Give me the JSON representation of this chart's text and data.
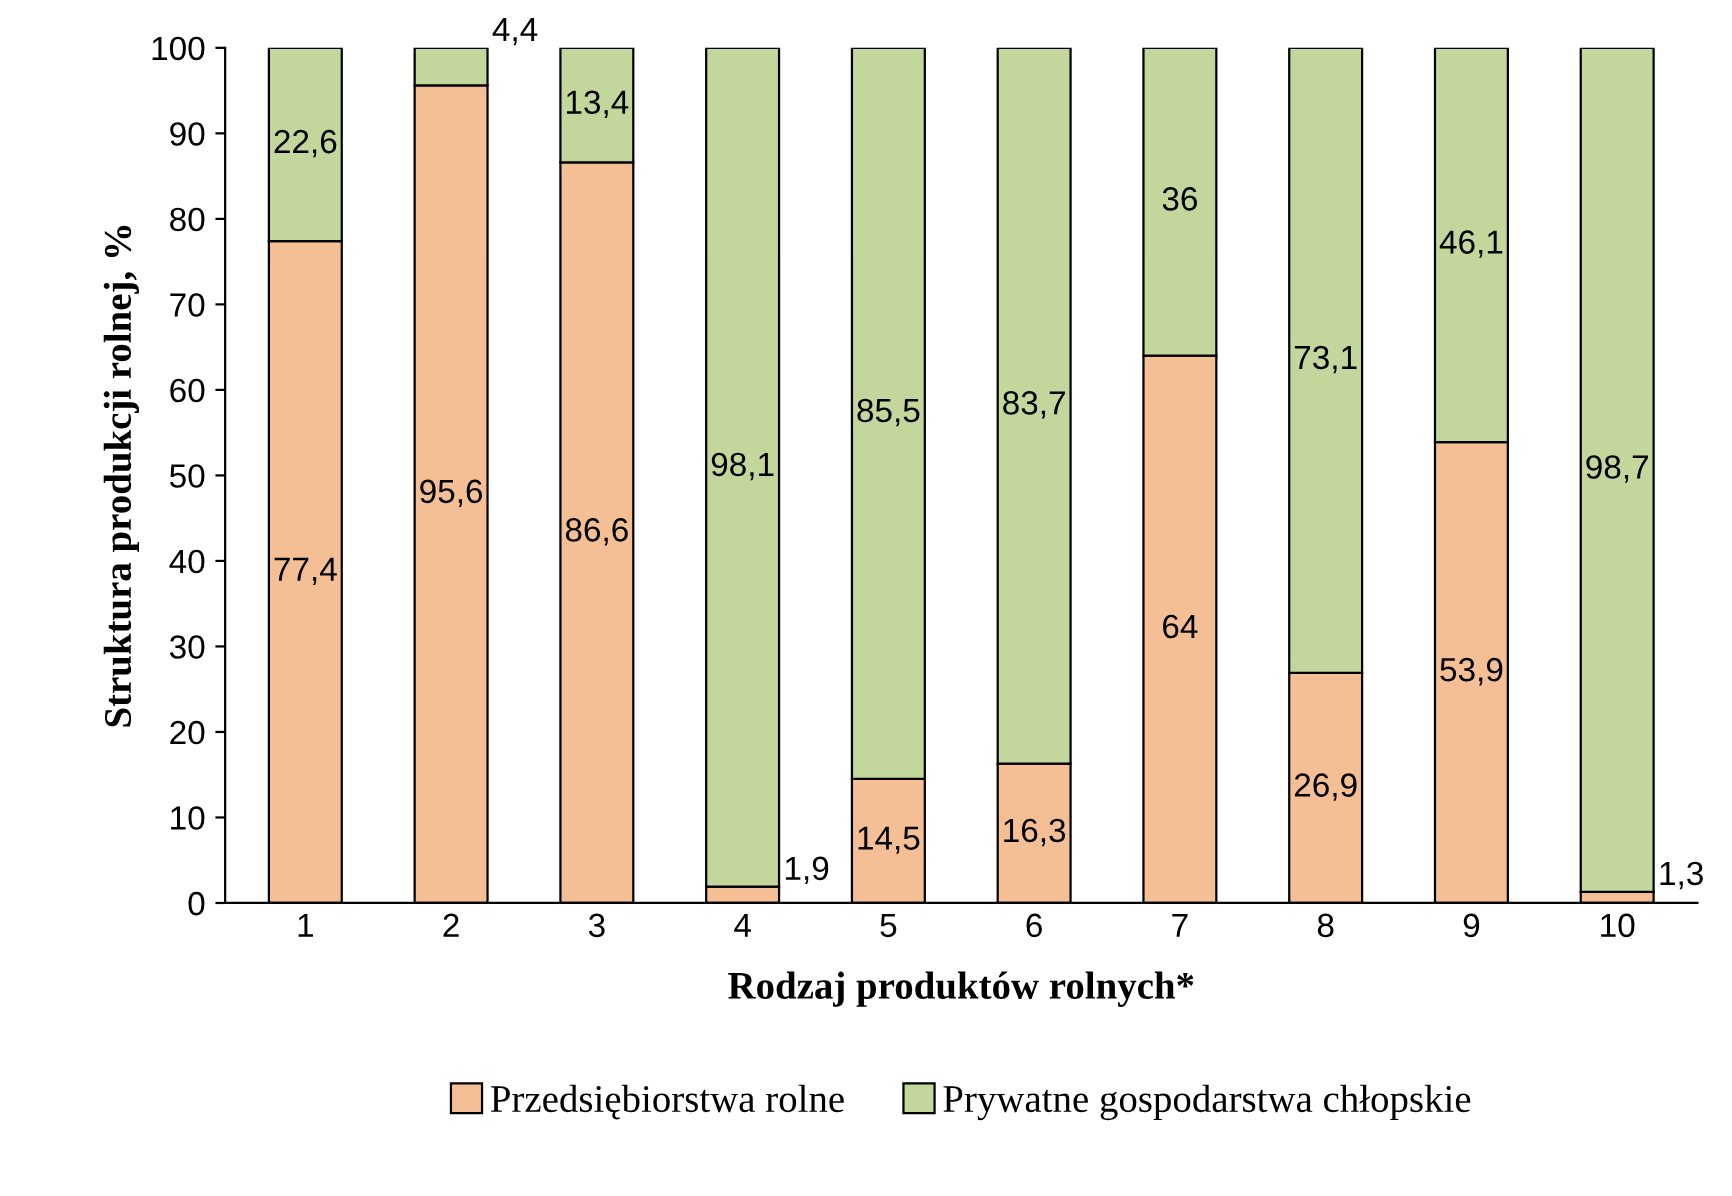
{
  "chart_data": {
    "type": "bar",
    "stacked": true,
    "xlabel": "Rodzaj produktów rolnych*",
    "ylabel": "Struktura produkcji rolnej, %",
    "categories": [
      "1",
      "2",
      "3",
      "4",
      "5",
      "6",
      "7",
      "8",
      "9",
      "10"
    ],
    "ylim": [
      0,
      100
    ],
    "yticks": [
      0,
      10,
      20,
      30,
      40,
      50,
      60,
      70,
      80,
      90,
      100
    ],
    "grid": false,
    "legend": "bottom",
    "series": [
      {
        "name": "Przedsiębiorstwa rolne",
        "color": "#f4bf94",
        "values": [
          77.4,
          95.6,
          86.6,
          1.9,
          14.5,
          16.3,
          64,
          26.9,
          53.9,
          1.3
        ],
        "value_labels": [
          "77,4",
          "95,6",
          "86,6",
          "1,9",
          "14,5",
          "16,3",
          "64",
          "26,9",
          "53,9",
          "1,3"
        ]
      },
      {
        "name": "Prywatne gospodarstwa chłopskie",
        "color": "#c3d69b",
        "values": [
          22.6,
          4.4,
          13.4,
          98.1,
          85.5,
          83.7,
          36,
          73.1,
          46.1,
          98.7
        ],
        "value_labels": [
          "22,6",
          "4,4",
          "13,4",
          "98,1",
          "85,5",
          "83,7",
          "36",
          "73,1",
          "46,1",
          "98,7"
        ]
      }
    ]
  }
}
